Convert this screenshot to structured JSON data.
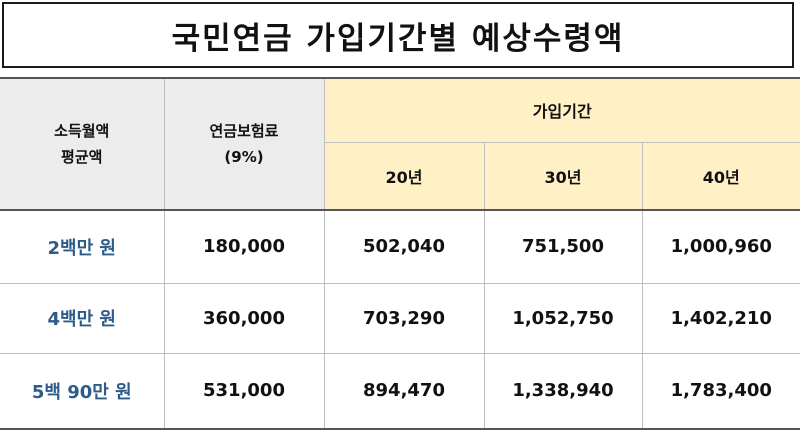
{
  "title": "국민연금 가입기간별 예상수령액",
  "header": {
    "income_line1": "소득월액",
    "income_line2": "평균액",
    "premium_line1": "연금보험료",
    "premium_line2": "(9%)",
    "period": "가입기간",
    "years": [
      "20년",
      "30년",
      "40년"
    ]
  },
  "rows": [
    {
      "income": "2백만 원",
      "premium": "180,000",
      "y20": "502,040",
      "y30": "751,500",
      "y40": "1,000,960"
    },
    {
      "income": "4백만 원",
      "premium": "360,000",
      "y20": "703,290",
      "y30": "1,052,750",
      "y40": "1,402,210"
    },
    {
      "income": "5백 90만 원",
      "premium": "531,000",
      "y20": "894,470",
      "y30": "1,338,940",
      "y40": "1,783,400"
    }
  ],
  "colors": {
    "header_grey": "#ececec",
    "header_yellow": "#fff0c6",
    "label_blue": "#2d5b8a"
  }
}
